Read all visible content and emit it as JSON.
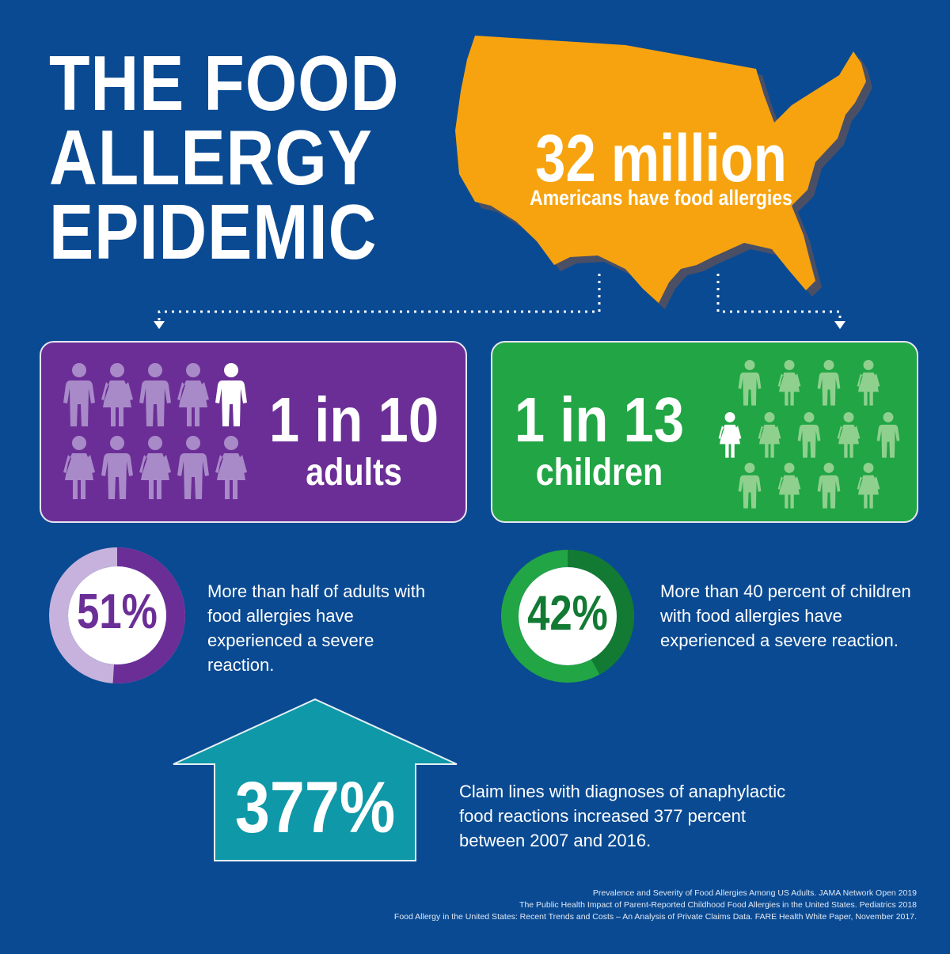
{
  "title": {
    "line1": "THE FOOD",
    "line2": "ALLERGY",
    "line3": "EPIDEMIC"
  },
  "headline_stat": {
    "value": "32 million",
    "label": "Americans have food allergies"
  },
  "adults": {
    "ratio": "1 in 10",
    "label": "adults",
    "highlighted": 1,
    "total": 10
  },
  "children": {
    "ratio": "1 in 13",
    "label": "children",
    "highlighted": 1,
    "total": 13
  },
  "adult_severe": {
    "percent_text": "51%",
    "fraction": 0.51,
    "description": "More than half of adults with food allergies have experienced a severe reaction."
  },
  "child_severe": {
    "percent_text": "42%",
    "fraction": 0.42,
    "description": "More than 40 percent of children with food allergies have experienced a severe reaction."
  },
  "claims": {
    "percent_text": "377%",
    "description": "Claim lines with diagnoses of anaphylactic food reactions increased 377 percent between 2007 and 2016."
  },
  "sources": [
    "Prevalence and Severity of Food Allergies Among US Adults. JAMA Network Open 2019",
    "The Public Health Impact of Parent-Reported Childhood Food Allergies in the United States. Pediatrics 2018",
    "Food Allergy in the United States: Recent Trends and Costs – An Analysis of Private Claims Data. FARE Health White Paper, November 2017."
  ],
  "colors": {
    "background": "#0a4a92",
    "map": "#f7a30f",
    "adults_panel": "#6b2e96",
    "adults_ring_light": "#c6b2dc",
    "children_panel": "#22a544",
    "children_ring_dark": "#127a33",
    "arrow": "#0e98a8"
  },
  "icons": {
    "adult_figure": "person-icon",
    "child_figure": "child-icon",
    "map": "usa-map-icon",
    "arrow": "up-arrow-icon"
  }
}
